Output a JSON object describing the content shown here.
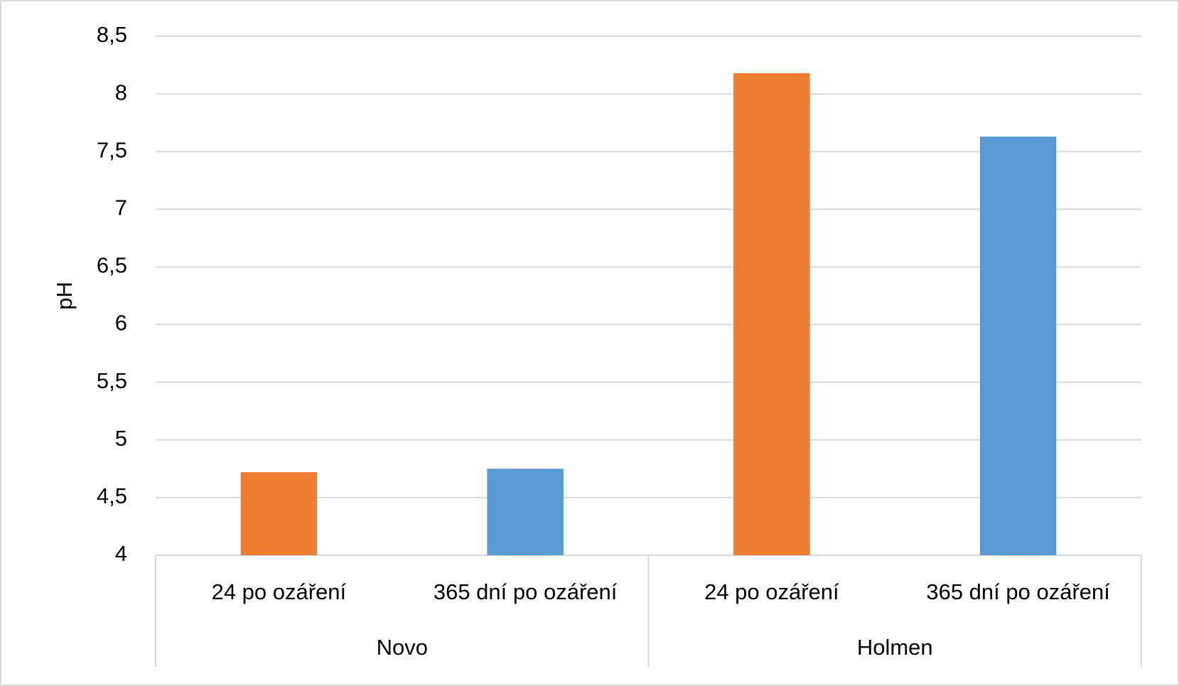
{
  "chart_data": {
    "type": "bar",
    "ylabel": "pH",
    "groups": [
      {
        "name": "Novo",
        "categories": [
          "24 po ozáření",
          "365 dní po ozáření"
        ],
        "values": [
          4.72,
          4.75
        ]
      },
      {
        "name": "Holmen",
        "categories": [
          "24 po ozáření",
          "365 dní po ozáření"
        ],
        "values": [
          8.18,
          7.63
        ]
      }
    ],
    "colors": [
      "#ed7d31",
      "#5b9bd5"
    ],
    "ylim": [
      4,
      8.5
    ],
    "yticks": [
      4,
      {
        "value": 4.5,
        "label": "4,5"
      },
      5,
      {
        "value": 5.5,
        "label": "5,5"
      },
      6,
      {
        "value": 6.5,
        "label": "6,5"
      },
      7,
      {
        "value": 7.5,
        "label": "7,5"
      },
      8,
      {
        "value": 8.5,
        "label": "8,5"
      }
    ],
    "grid": true
  }
}
